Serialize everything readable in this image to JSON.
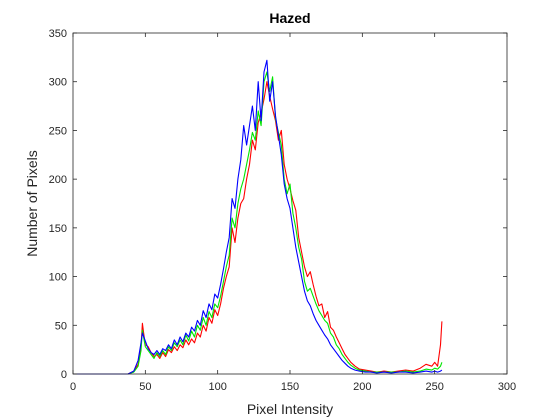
{
  "chart_data": {
    "type": "line",
    "title": "Hazed",
    "xlabel": "Pixel Intensity",
    "ylabel": "Number of Pixels",
    "xlim": [
      0,
      300
    ],
    "ylim": [
      0,
      350
    ],
    "xticks": [
      0,
      50,
      100,
      150,
      200,
      250,
      300
    ],
    "yticks": [
      0,
      50,
      100,
      150,
      200,
      250,
      300,
      350
    ],
    "grid": false,
    "legend": "none",
    "series": [
      {
        "color": "#ff0000",
        "points": [
          [
            0,
            0
          ],
          [
            38,
            0
          ],
          [
            42,
            3
          ],
          [
            45,
            10
          ],
          [
            47,
            28
          ],
          [
            48,
            52
          ],
          [
            49,
            40
          ],
          [
            50,
            30
          ],
          [
            52,
            28
          ],
          [
            54,
            22
          ],
          [
            56,
            18
          ],
          [
            58,
            20
          ],
          [
            60,
            16
          ],
          [
            62,
            22
          ],
          [
            64,
            18
          ],
          [
            66,
            25
          ],
          [
            68,
            22
          ],
          [
            70,
            28
          ],
          [
            72,
            24
          ],
          [
            74,
            30
          ],
          [
            76,
            27
          ],
          [
            78,
            35
          ],
          [
            80,
            30
          ],
          [
            82,
            36
          ],
          [
            84,
            32
          ],
          [
            86,
            42
          ],
          [
            88,
            38
          ],
          [
            90,
            50
          ],
          [
            92,
            44
          ],
          [
            94,
            58
          ],
          [
            96,
            52
          ],
          [
            98,
            66
          ],
          [
            100,
            60
          ],
          [
            102,
            72
          ],
          [
            104,
            88
          ],
          [
            106,
            100
          ],
          [
            108,
            110
          ],
          [
            110,
            150
          ],
          [
            112,
            135
          ],
          [
            114,
            160
          ],
          [
            116,
            175
          ],
          [
            118,
            180
          ],
          [
            120,
            200
          ],
          [
            122,
            215
          ],
          [
            124,
            240
          ],
          [
            126,
            230
          ],
          [
            128,
            258
          ],
          [
            130,
            268
          ],
          [
            132,
            282
          ],
          [
            134,
            300
          ],
          [
            136,
            285
          ],
          [
            138,
            272
          ],
          [
            140,
            260
          ],
          [
            142,
            240
          ],
          [
            144,
            250
          ],
          [
            146,
            215
          ],
          [
            148,
            200
          ],
          [
            150,
            190
          ],
          [
            152,
            178
          ],
          [
            154,
            168
          ],
          [
            156,
            140
          ],
          [
            158,
            125
          ],
          [
            160,
            110
          ],
          [
            162,
            100
          ],
          [
            164,
            105
          ],
          [
            166,
            92
          ],
          [
            168,
            80
          ],
          [
            170,
            70
          ],
          [
            172,
            72
          ],
          [
            174,
            58
          ],
          [
            176,
            64
          ],
          [
            178,
            48
          ],
          [
            180,
            45
          ],
          [
            182,
            38
          ],
          [
            184,
            32
          ],
          [
            186,
            26
          ],
          [
            188,
            20
          ],
          [
            190,
            16
          ],
          [
            192,
            12
          ],
          [
            195,
            8
          ],
          [
            198,
            5
          ],
          [
            202,
            4
          ],
          [
            206,
            3
          ],
          [
            210,
            2
          ],
          [
            215,
            3
          ],
          [
            220,
            2
          ],
          [
            225,
            3
          ],
          [
            230,
            4
          ],
          [
            235,
            3
          ],
          [
            240,
            6
          ],
          [
            244,
            10
          ],
          [
            248,
            8
          ],
          [
            250,
            12
          ],
          [
            252,
            8
          ],
          [
            254,
            30
          ],
          [
            255,
            54
          ]
        ]
      },
      {
        "color": "#00e600",
        "points": [
          [
            0,
            0
          ],
          [
            38,
            0
          ],
          [
            42,
            2
          ],
          [
            45,
            8
          ],
          [
            47,
            24
          ],
          [
            48,
            45
          ],
          [
            49,
            36
          ],
          [
            50,
            28
          ],
          [
            52,
            24
          ],
          [
            54,
            20
          ],
          [
            56,
            16
          ],
          [
            58,
            22
          ],
          [
            60,
            18
          ],
          [
            62,
            24
          ],
          [
            64,
            20
          ],
          [
            66,
            28
          ],
          [
            68,
            24
          ],
          [
            70,
            32
          ],
          [
            72,
            28
          ],
          [
            74,
            35
          ],
          [
            76,
            30
          ],
          [
            78,
            40
          ],
          [
            80,
            34
          ],
          [
            82,
            44
          ],
          [
            84,
            38
          ],
          [
            86,
            50
          ],
          [
            88,
            45
          ],
          [
            90,
            58
          ],
          [
            92,
            50
          ],
          [
            94,
            64
          ],
          [
            96,
            58
          ],
          [
            98,
            72
          ],
          [
            100,
            68
          ],
          [
            102,
            80
          ],
          [
            104,
            95
          ],
          [
            106,
            110
          ],
          [
            108,
            122
          ],
          [
            110,
            160
          ],
          [
            112,
            150
          ],
          [
            114,
            175
          ],
          [
            116,
            190
          ],
          [
            118,
            200
          ],
          [
            120,
            215
          ],
          [
            122,
            230
          ],
          [
            124,
            248
          ],
          [
            126,
            240
          ],
          [
            128,
            270
          ],
          [
            130,
            255
          ],
          [
            132,
            300
          ],
          [
            134,
            310
          ],
          [
            136,
            290
          ],
          [
            138,
            305
          ],
          [
            140,
            262
          ],
          [
            142,
            248
          ],
          [
            144,
            235
          ],
          [
            146,
            200
          ],
          [
            148,
            185
          ],
          [
            150,
            195
          ],
          [
            152,
            165
          ],
          [
            154,
            150
          ],
          [
            156,
            130
          ],
          [
            158,
            118
          ],
          [
            160,
            95
          ],
          [
            162,
            85
          ],
          [
            164,
            88
          ],
          [
            166,
            80
          ],
          [
            168,
            72
          ],
          [
            170,
            65
          ],
          [
            172,
            60
          ],
          [
            174,
            55
          ],
          [
            176,
            52
          ],
          [
            178,
            42
          ],
          [
            180,
            38
          ],
          [
            182,
            30
          ],
          [
            184,
            26
          ],
          [
            186,
            20
          ],
          [
            188,
            16
          ],
          [
            190,
            12
          ],
          [
            192,
            9
          ],
          [
            195,
            6
          ],
          [
            198,
            4
          ],
          [
            202,
            3
          ],
          [
            206,
            2
          ],
          [
            210,
            2
          ],
          [
            215,
            2
          ],
          [
            220,
            2
          ],
          [
            225,
            2
          ],
          [
            230,
            3
          ],
          [
            235,
            2
          ],
          [
            240,
            3
          ],
          [
            244,
            5
          ],
          [
            248,
            4
          ],
          [
            250,
            6
          ],
          [
            252,
            5
          ],
          [
            254,
            8
          ],
          [
            255,
            12
          ]
        ]
      },
      {
        "color": "#0000ff",
        "points": [
          [
            0,
            0
          ],
          [
            38,
            0
          ],
          [
            42,
            3
          ],
          [
            45,
            14
          ],
          [
            47,
            32
          ],
          [
            48,
            42
          ],
          [
            49,
            38
          ],
          [
            50,
            34
          ],
          [
            52,
            26
          ],
          [
            54,
            22
          ],
          [
            56,
            20
          ],
          [
            58,
            24
          ],
          [
            60,
            20
          ],
          [
            62,
            26
          ],
          [
            64,
            24
          ],
          [
            66,
            30
          ],
          [
            68,
            26
          ],
          [
            70,
            35
          ],
          [
            72,
            30
          ],
          [
            74,
            38
          ],
          [
            76,
            33
          ],
          [
            78,
            42
          ],
          [
            80,
            38
          ],
          [
            82,
            48
          ],
          [
            84,
            44
          ],
          [
            86,
            55
          ],
          [
            88,
            50
          ],
          [
            90,
            65
          ],
          [
            92,
            58
          ],
          [
            94,
            72
          ],
          [
            96,
            66
          ],
          [
            98,
            82
          ],
          [
            100,
            78
          ],
          [
            102,
            92
          ],
          [
            104,
            108
          ],
          [
            106,
            125
          ],
          [
            108,
            140
          ],
          [
            110,
            180
          ],
          [
            112,
            170
          ],
          [
            114,
            200
          ],
          [
            116,
            220
          ],
          [
            118,
            255
          ],
          [
            120,
            235
          ],
          [
            122,
            255
          ],
          [
            124,
            275
          ],
          [
            126,
            250
          ],
          [
            128,
            300
          ],
          [
            130,
            260
          ],
          [
            132,
            310
          ],
          [
            134,
            322
          ],
          [
            136,
            280
          ],
          [
            138,
            300
          ],
          [
            140,
            265
          ],
          [
            142,
            245
          ],
          [
            144,
            225
          ],
          [
            146,
            195
          ],
          [
            148,
            180
          ],
          [
            150,
            170
          ],
          [
            152,
            150
          ],
          [
            154,
            130
          ],
          [
            156,
            115
          ],
          [
            158,
            100
          ],
          [
            160,
            85
          ],
          [
            162,
            75
          ],
          [
            164,
            70
          ],
          [
            166,
            62
          ],
          [
            168,
            55
          ],
          [
            170,
            50
          ],
          [
            172,
            45
          ],
          [
            174,
            40
          ],
          [
            176,
            36
          ],
          [
            178,
            30
          ],
          [
            180,
            26
          ],
          [
            182,
            22
          ],
          [
            184,
            18
          ],
          [
            186,
            14
          ],
          [
            188,
            11
          ],
          [
            190,
            8
          ],
          [
            192,
            6
          ],
          [
            195,
            4
          ],
          [
            198,
            3
          ],
          [
            202,
            2
          ],
          [
            206,
            2
          ],
          [
            210,
            1
          ],
          [
            215,
            2
          ],
          [
            220,
            1
          ],
          [
            225,
            2
          ],
          [
            230,
            2
          ],
          [
            235,
            1
          ],
          [
            240,
            2
          ],
          [
            244,
            3
          ],
          [
            248,
            2
          ],
          [
            250,
            3
          ],
          [
            252,
            2
          ],
          [
            254,
            3
          ],
          [
            255,
            4
          ]
        ]
      }
    ]
  }
}
